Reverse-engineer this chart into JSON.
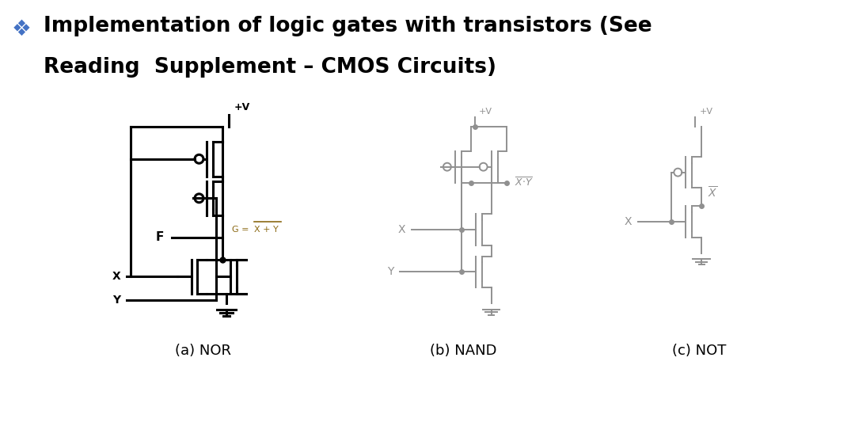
{
  "title_line1": "Implementation of logic gates with transistors (See",
  "title_line2": "Reading  Supplement – CMOS Circuits)",
  "bg_color": "#ffffff",
  "text_color": "#000000",
  "bullet_color": "#4472C4",
  "circuit_color_nor": "#000000",
  "circuit_color_nand": "#909090",
  "circuit_color_not": "#909090",
  "label_nor": "(a) NOR",
  "label_nand": "(b) NAND",
  "label_not": "(c) NOT",
  "title_fontsize": 19,
  "label_fontsize": 13,
  "nor_lw": 2.2,
  "nand_lw": 1.4,
  "not_lw": 1.4
}
